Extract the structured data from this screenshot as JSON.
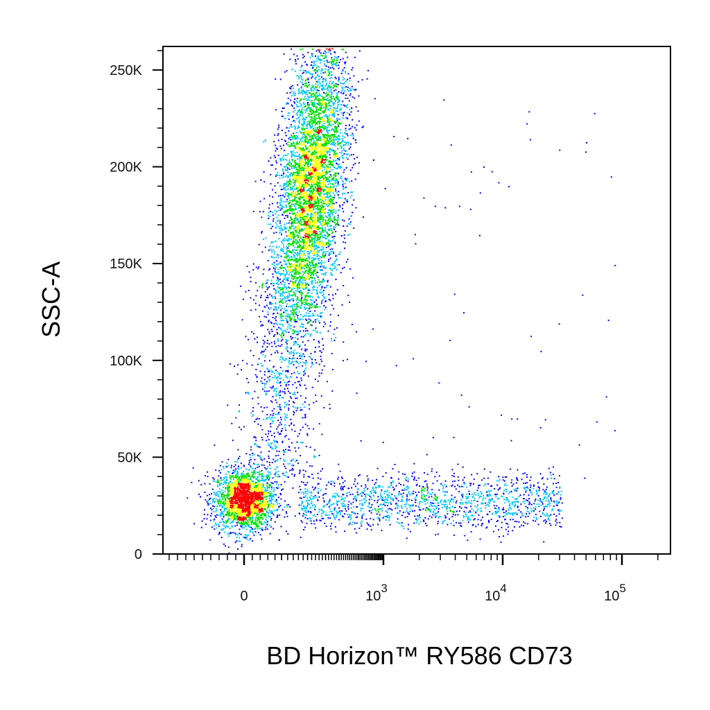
{
  "chart_data": {
    "type": "scatter",
    "title": "",
    "xlabel": "BD Horizon™ RY586 CD73",
    "ylabel": "SSC-A",
    "x_scale": "biexponential",
    "x_tick_labels": [
      "0",
      "10^3",
      "10^4",
      "10^5"
    ],
    "x_ticks": [
      0,
      1000,
      10000,
      100000
    ],
    "y_tick_labels": [
      "0",
      "50K",
      "100K",
      "150K",
      "200K",
      "250K"
    ],
    "y_ticks": [
      0,
      50000,
      100000,
      150000,
      200000,
      250000
    ],
    "ylim": [
      0,
      262144
    ],
    "grid": false,
    "legend": "none",
    "color_map": "density (blue → cyan → green → yellow → red)",
    "colors": [
      "#0000ff",
      "#00c8ff",
      "#00e000",
      "#ffff00",
      "#ff0000"
    ],
    "populations": [
      {
        "description_free": true,
        "x_center": 0,
        "y_center": 28000,
        "y_spread": 8000,
        "points": 2200
      },
      {
        "x_center": 230,
        "y_center": 190000,
        "y_spread": 45000,
        "points": 6000
      },
      {
        "x_center": 4500,
        "y_center": 27000,
        "y_spread": 7000,
        "points": 1500
      },
      {
        "x_center": 140,
        "y_center": 80000,
        "y_spread": 35000,
        "points": 900
      }
    ]
  }
}
